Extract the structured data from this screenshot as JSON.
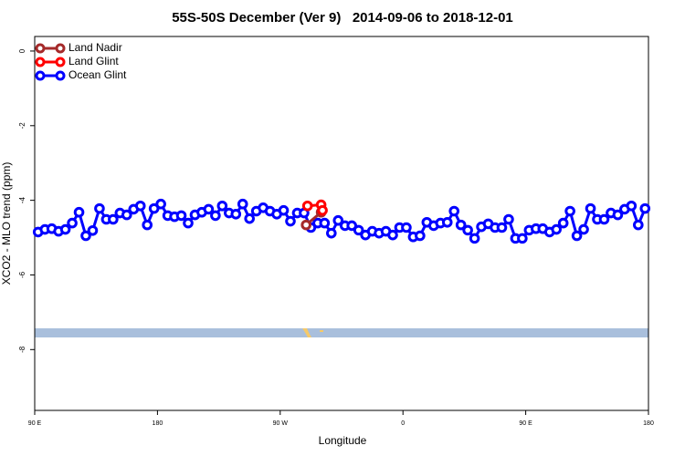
{
  "chart_data": {
    "type": "line",
    "title": "55S-50S December (Ver 9)   2014-09-06 to 2018-12-01",
    "x_label": "Longitude",
    "y_label": "XCO2 - MLO trend (ppm)",
    "xlim": [
      90,
      540
    ],
    "xticks": [
      {
        "value": 90,
        "label": "90 E"
      },
      180,
      {
        "value": 270,
        "label": "90 W"
      },
      {
        "value": 360,
        "label": "0"
      },
      {
        "value": 450,
        "label": "90 E"
      },
      {
        "value": 540,
        "label": "180"
      }
    ],
    "ylim": [
      -9.63,
      0.39
    ],
    "yticks": [
      0,
      -2,
      -4,
      -6,
      -8
    ],
    "legend": "top-left",
    "series": [
      {
        "name": "Land Nadir",
        "color": "#a52a2a",
        "x": [
          289,
          300
        ],
        "values": [
          -4.66,
          -4.32
        ]
      },
      {
        "name": "Land Glint",
        "color": "#ff0000",
        "x": [
          290,
          300,
          301
        ],
        "values": [
          -4.15,
          -4.12,
          -4.27
        ]
      },
      {
        "name": "Ocean Glint",
        "color": "#0000ff",
        "x": [
          92.5,
          97.5,
          102.5,
          107.5,
          112.5,
          117.5,
          122.5,
          127.5,
          132.5,
          137.5,
          142.5,
          147.5,
          152.5,
          157.5,
          162.5,
          167.5,
          172.5,
          177.5,
          182.5,
          187.5,
          192.5,
          197.5,
          202.5,
          207.5,
          212.5,
          217.5,
          222.5,
          227.5,
          232.5,
          237.5,
          242.5,
          247.5,
          252.5,
          257.5,
          262.5,
          267.5,
          272.5,
          277.5,
          282.5,
          287.5,
          292.5,
          297.5,
          302.5,
          307.5,
          312.5,
          317.5,
          322.5,
          327.5,
          332.5,
          337.5,
          342.5,
          347.5,
          352.5,
          357.5,
          362.5,
          367.5,
          372.5,
          377.5,
          382.5,
          387.5,
          392.5,
          397.5,
          402.5,
          407.5,
          412.5,
          417.5,
          422.5,
          427.5,
          432.5,
          437.5,
          442.5,
          447.5,
          452.5,
          457.5,
          462.5,
          467.5,
          472.5,
          477.5,
          482.5,
          487.5,
          492.5,
          497.5,
          502.5,
          507.5,
          512.5,
          517.5,
          522.5,
          527.5,
          532.5,
          537.5
        ],
        "values": [
          -4.85,
          -4.78,
          -4.76,
          -4.83,
          -4.78,
          -4.61,
          -4.32,
          -4.95,
          -4.81,
          -4.22,
          -4.51,
          -4.51,
          -4.34,
          -4.39,
          -4.24,
          -4.15,
          -4.66,
          -4.22,
          -4.1,
          -4.41,
          -4.44,
          -4.41,
          -4.61,
          -4.39,
          -4.32,
          -4.24,
          -4.41,
          -4.15,
          -4.34,
          -4.37,
          -4.1,
          -4.49,
          -4.29,
          -4.2,
          -4.29,
          -4.37,
          -4.27,
          -4.56,
          -4.34,
          -4.34,
          -4.73,
          -4.61,
          -4.61,
          -4.88,
          -4.54,
          -4.68,
          -4.68,
          -4.8,
          -4.93,
          -4.83,
          -4.88,
          -4.83,
          -4.93,
          -4.73,
          -4.73,
          -4.98,
          -4.95,
          -4.59,
          -4.68,
          -4.61,
          -4.59,
          -4.29,
          -4.66,
          -4.8,
          -5.02,
          -4.71,
          -4.63,
          -4.73,
          -4.73,
          -4.51,
          -5.02,
          -5.02,
          -4.8,
          -4.76,
          -4.76,
          -4.85,
          -4.78,
          -4.61,
          -4.29,
          -4.95,
          -4.78,
          -4.22,
          -4.51,
          -4.51,
          -4.34,
          -4.39,
          -4.24,
          -4.15,
          -4.66,
          -4.22
        ]
      }
    ]
  }
}
